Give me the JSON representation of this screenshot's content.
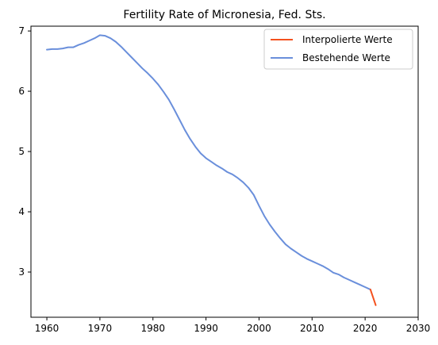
{
  "chart_data": {
    "type": "line",
    "title": "Fertility Rate of Micronesia, Fed. Sts.",
    "xlabel": "",
    "ylabel": "",
    "xlim": [
      1957,
      2030
    ],
    "ylim": [
      2.25,
      7.08
    ],
    "xticks": [
      1960,
      1970,
      1980,
      1990,
      2000,
      2010,
      2020,
      2030
    ],
    "yticks": [
      3,
      4,
      5,
      6,
      7
    ],
    "grid": false,
    "legend_position": "top-right",
    "series": [
      {
        "name": "Interpolierte Werte",
        "color": "#f4511e",
        "x": [
          2021,
          2022
        ],
        "y": [
          2.71,
          2.45
        ]
      },
      {
        "name": "Bestehende Werte",
        "color": "#6a8fdb",
        "x": [
          1960,
          1961,
          1962,
          1963,
          1964,
          1965,
          1966,
          1967,
          1968,
          1969,
          1970,
          1971,
          1972,
          1973,
          1974,
          1975,
          1976,
          1977,
          1978,
          1979,
          1980,
          1981,
          1982,
          1983,
          1984,
          1985,
          1986,
          1987,
          1988,
          1989,
          1990,
          1991,
          1992,
          1993,
          1994,
          1995,
          1996,
          1997,
          1998,
          1999,
          2000,
          2001,
          2002,
          2003,
          2004,
          2005,
          2006,
          2007,
          2008,
          2009,
          2010,
          2011,
          2012,
          2013,
          2014,
          2015,
          2016,
          2017,
          2018,
          2019,
          2020,
          2021
        ],
        "y": [
          6.69,
          6.7,
          6.7,
          6.71,
          6.73,
          6.73,
          6.77,
          6.8,
          6.84,
          6.88,
          6.93,
          6.92,
          6.88,
          6.82,
          6.74,
          6.65,
          6.56,
          6.47,
          6.38,
          6.3,
          6.21,
          6.11,
          5.99,
          5.86,
          5.7,
          5.53,
          5.36,
          5.21,
          5.08,
          4.97,
          4.89,
          4.83,
          4.77,
          4.72,
          4.66,
          4.62,
          4.56,
          4.49,
          4.4,
          4.28,
          4.1,
          3.93,
          3.79,
          3.67,
          3.56,
          3.46,
          3.39,
          3.33,
          3.27,
          3.22,
          3.18,
          3.14,
          3.1,
          3.05,
          2.99,
          2.96,
          2.91,
          2.87,
          2.83,
          2.79,
          2.75,
          2.71
        ]
      }
    ]
  }
}
